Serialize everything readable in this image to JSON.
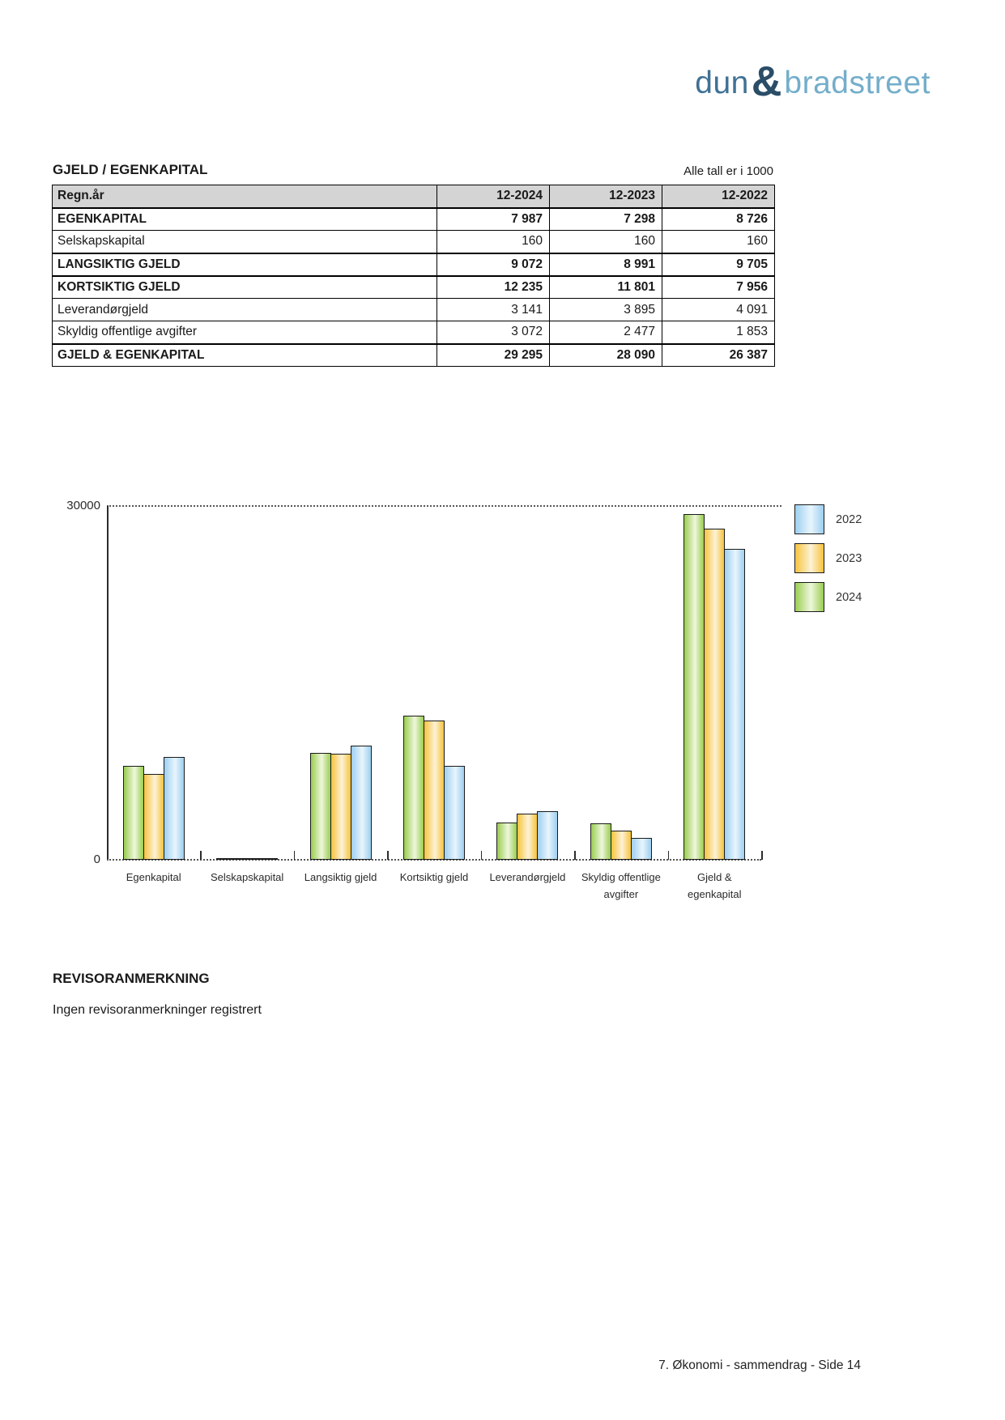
{
  "logo": {
    "word1": "dun",
    "ampersand": "&",
    "word2": "bradstreet",
    "word1_color": "#3f7194",
    "ampersand_color": "#2a4d68",
    "word2_color": "#74aecb"
  },
  "header": {
    "section_title": "GJELD / EGENKAPITAL",
    "units_note": "Alle tall er i 1000"
  },
  "table": {
    "columns": [
      "Regn.år",
      "12-2024",
      "12-2023",
      "12-2022"
    ],
    "rows": [
      {
        "label": "EGENKAPITAL",
        "values": [
          "7 987",
          "7 298",
          "8 726"
        ]
      },
      {
        "label": "Selskapskapital",
        "values": [
          "160",
          "160",
          "160"
        ]
      },
      {
        "label": "LANGSIKTIG GJELD",
        "values": [
          "9 072",
          "8 991",
          "9 705"
        ]
      },
      {
        "label": "KORTSIKTIG GJELD",
        "values": [
          "12 235",
          "11 801",
          "7 956"
        ]
      },
      {
        "label": "Leverandørgjeld",
        "values": [
          "3 141",
          "3 895",
          "4 091"
        ]
      },
      {
        "label": "Skyldig offentlige avgifter",
        "values": [
          "3 072",
          "2 477",
          "1 853"
        ]
      },
      {
        "label": "GJELD & EGENKAPITAL",
        "values": [
          "29 295",
          "28 090",
          "26 387"
        ]
      }
    ]
  },
  "chart_data": {
    "type": "bar",
    "title": "",
    "categories": [
      "Egenkapital",
      "Selskapskapital",
      "Langsiktig gjeld",
      "Kortsiktig gjeld",
      "Leverandørgjeld",
      "Skyldig offentlige\navgifter",
      "Gjeld &\negenkapital"
    ],
    "series": [
      {
        "name": "2024",
        "color": "#9acd50",
        "color_light": "#eef7dc",
        "values": [
          7987,
          160,
          9072,
          12235,
          3141,
          3072,
          29295
        ]
      },
      {
        "name": "2023",
        "color": "#f6c33d",
        "color_light": "#fdf2d6",
        "values": [
          7298,
          160,
          8991,
          11801,
          3895,
          2477,
          28090
        ]
      },
      {
        "name": "2022",
        "color": "#9dcff0",
        "color_light": "#e8f5fd",
        "values": [
          8726,
          160,
          9705,
          7956,
          4091,
          1853,
          26387
        ]
      }
    ],
    "legend": [
      "2022",
      "2023",
      "2024"
    ],
    "legend_position": "right",
    "ylim": [
      0,
      30000
    ],
    "ytick_labels": [
      "30000",
      "0"
    ],
    "gridline": {
      "value": 30000,
      "style": "dotted"
    },
    "bar_border_color": "#1a1a1a"
  },
  "audit": {
    "heading": "REVISORANMERKNING",
    "body": "Ingen revisoranmerkninger registrert"
  },
  "footer": {
    "text": "7. Økonomi - sammendrag - Side 14"
  }
}
